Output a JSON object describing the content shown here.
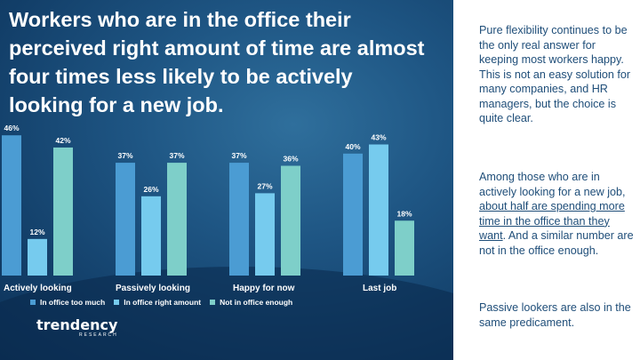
{
  "title": "Workers who are in the office their perceived right amount of time are almost four times less likely to be actively looking for a new job.",
  "sidebar": {
    "p1": "Pure flexibility continues to be the only real answer for keeping most workers happy. This is not an easy solution for many companies, and HR managers, but the choice is quite clear.",
    "p2_start": "Among those who are in actively looking for a new job, ",
    "p2_underlined": "about half are spending more time in the office than they want",
    "p2_end": ". And a similar number are not in the office enough.",
    "p3": "Passive lookers are also in the same predicament."
  },
  "logo": {
    "word": "trendency",
    "sub": "RESEARCH"
  },
  "colors": {
    "s0": "#4b9cd3",
    "s1": "#76cbee",
    "s2": "#7ecfc9"
  },
  "chart_data": {
    "type": "bar",
    "categories": [
      "Actively looking",
      "Passively looking",
      "Happy for now",
      "Last job"
    ],
    "series": [
      {
        "name": "In office too much",
        "values": [
          46,
          37,
          37,
          40
        ],
        "labels": [
          "46%",
          "37%",
          "37%",
          "40%"
        ]
      },
      {
        "name": "In office right amount",
        "values": [
          12,
          26,
          27,
          43
        ],
        "labels": [
          "12%",
          "26%",
          "27%",
          "43%"
        ]
      },
      {
        "name": "Not in office enough",
        "values": [
          42,
          37,
          36,
          18
        ],
        "labels": [
          "42%",
          "37%",
          "36%",
          "18%"
        ]
      }
    ],
    "ylim": [
      0,
      50
    ],
    "legend_position": "bottom"
  }
}
